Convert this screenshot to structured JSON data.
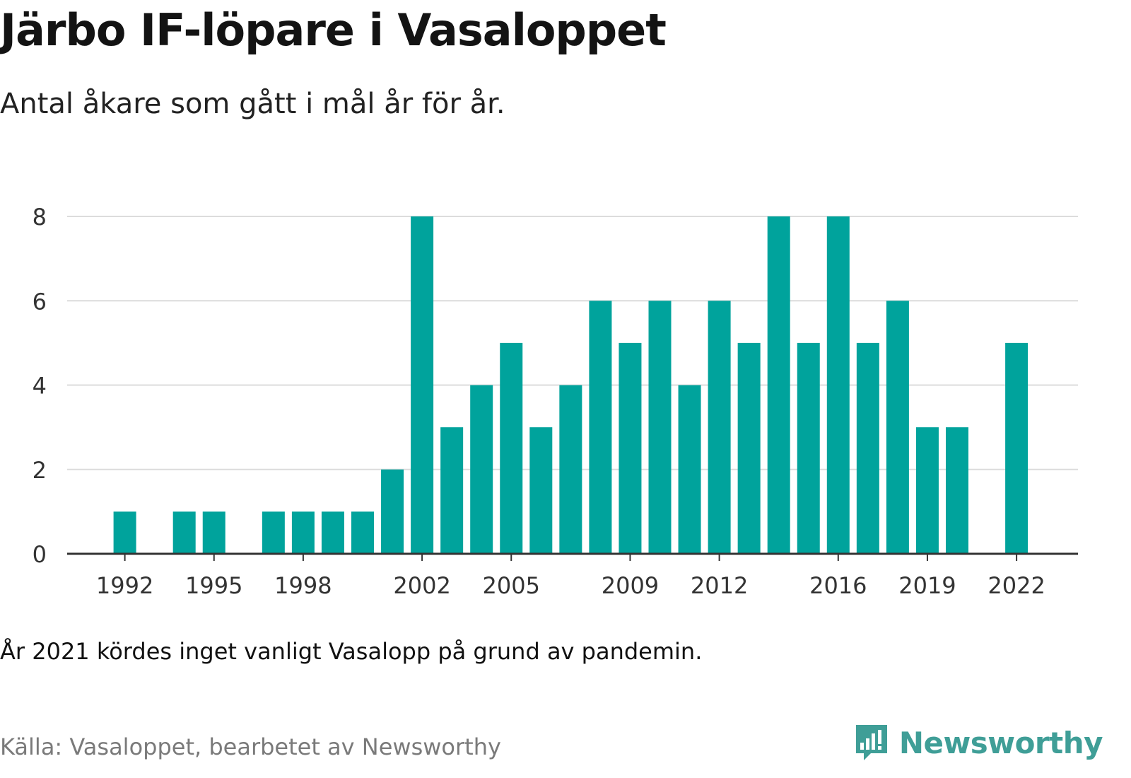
{
  "header": {
    "title": "Järbo IF-löpare i Vasaloppet",
    "subtitle": "Antal åkare som gått i mål år för år."
  },
  "footer": {
    "note": "År 2021 kördes inget vanligt Vasalopp på grund av pandemin.",
    "source": "Källa: Vasaloppet, bearbetet av Newsworthy",
    "brand": "Newsworthy"
  },
  "colors": {
    "bar": "#00a39c",
    "grid": "#dcdcdc",
    "axis": "#333333",
    "brand": "#3f9e97"
  },
  "chart_data": {
    "type": "bar",
    "categories": [
      "1990",
      "1991",
      "1992",
      "1993",
      "1994",
      "1995",
      "1996",
      "1997",
      "1998",
      "1999",
      "2000",
      "2001",
      "2002",
      "2003",
      "2004",
      "2005",
      "2006",
      "2007",
      "2008",
      "2009",
      "2010",
      "2011",
      "2012",
      "2013",
      "2014",
      "2015",
      "2016",
      "2017",
      "2018",
      "2019",
      "2020",
      "2021",
      "2022",
      "2023"
    ],
    "values": [
      0,
      0,
      1,
      0,
      1,
      1,
      0,
      1,
      1,
      1,
      1,
      2,
      8,
      3,
      4,
      5,
      3,
      4,
      6,
      5,
      6,
      4,
      6,
      5,
      8,
      5,
      8,
      5,
      6,
      3,
      3,
      0,
      5,
      0
    ],
    "xticks": [
      "1992",
      "1995",
      "1998",
      "2002",
      "2005",
      "2009",
      "2012",
      "2016",
      "2019",
      "2022"
    ],
    "yticks": [
      0,
      2,
      4,
      6,
      8
    ],
    "ylim": [
      0,
      8
    ],
    "xlabel": "",
    "ylabel": "",
    "grid": true,
    "legend": "none"
  }
}
